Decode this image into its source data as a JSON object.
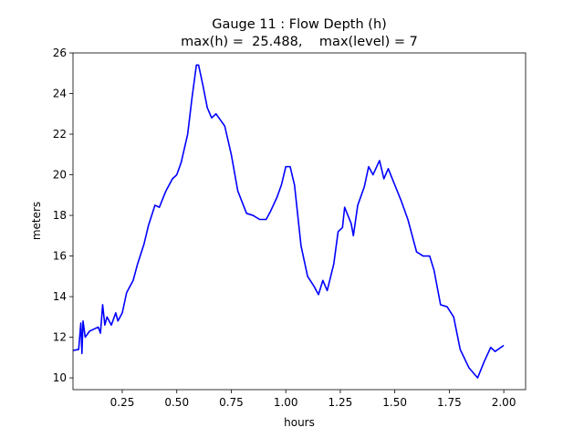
{
  "chart_data": {
    "type": "line",
    "title": "Gauge 11 : Flow Depth (h)",
    "subtitle": "max(h) =  25.488,    max(level) = 7",
    "xlabel": "hours",
    "ylabel": "meters",
    "x": [
      0.024,
      0.05,
      0.06,
      0.065,
      0.07,
      0.08,
      0.1,
      0.12,
      0.14,
      0.15,
      0.16,
      0.17,
      0.18,
      0.2,
      0.22,
      0.23,
      0.25,
      0.27,
      0.3,
      0.32,
      0.35,
      0.37,
      0.4,
      0.42,
      0.45,
      0.48,
      0.5,
      0.52,
      0.55,
      0.57,
      0.59,
      0.6,
      0.62,
      0.64,
      0.66,
      0.68,
      0.7,
      0.72,
      0.75,
      0.78,
      0.82,
      0.85,
      0.88,
      0.91,
      0.93,
      0.96,
      0.98,
      1.0,
      1.02,
      1.04,
      1.07,
      1.1,
      1.13,
      1.15,
      1.17,
      1.19,
      1.22,
      1.24,
      1.26,
      1.27,
      1.3,
      1.31,
      1.33,
      1.36,
      1.38,
      1.4,
      1.43,
      1.45,
      1.47,
      1.5,
      1.53,
      1.56,
      1.6,
      1.63,
      1.66,
      1.68,
      1.71,
      1.74,
      1.77,
      1.8,
      1.84,
      1.88,
      1.91,
      1.94,
      1.96,
      2.0
    ],
    "series": [
      {
        "name": "h",
        "color": "#0000ff",
        "values": [
          11.35,
          11.4,
          12.7,
          11.2,
          12.8,
          12.0,
          12.3,
          12.4,
          12.5,
          12.2,
          13.6,
          12.6,
          13.0,
          12.6,
          13.2,
          12.8,
          13.2,
          14.2,
          14.8,
          15.6,
          16.6,
          17.5,
          18.5,
          18.4,
          19.2,
          19.8,
          20.0,
          20.6,
          22.0,
          23.8,
          25.4,
          25.4,
          24.4,
          23.3,
          22.8,
          23.0,
          22.7,
          22.4,
          21.0,
          19.2,
          18.1,
          18.0,
          17.8,
          17.8,
          18.2,
          18.9,
          19.5,
          20.4,
          20.4,
          19.5,
          16.5,
          15.0,
          14.5,
          14.1,
          14.8,
          14.3,
          15.6,
          17.2,
          17.4,
          18.4,
          17.6,
          17.0,
          18.5,
          19.4,
          20.4,
          20.0,
          20.7,
          19.8,
          20.3,
          19.5,
          18.7,
          17.8,
          16.2,
          16.0,
          16.0,
          15.3,
          13.6,
          13.5,
          13.0,
          11.4,
          10.5,
          10.0,
          10.8,
          11.5,
          11.3,
          11.6
        ]
      }
    ],
    "xlim": [
      0.024,
      2.1
    ],
    "ylim": [
      9.42,
      26
    ],
    "xticks": [
      0.25,
      {
        "value": 0.5,
        "label": "0.50"
      },
      0.75,
      {
        "value": 1.0,
        "label": "1.00"
      },
      1.25,
      {
        "value": 1.5,
        "label": "1.50"
      },
      1.75,
      {
        "value": 2.0,
        "label": "2.00"
      }
    ],
    "yticks": [
      10,
      12,
      14,
      16,
      18,
      20,
      22,
      24,
      26
    ],
    "grid": false
  }
}
